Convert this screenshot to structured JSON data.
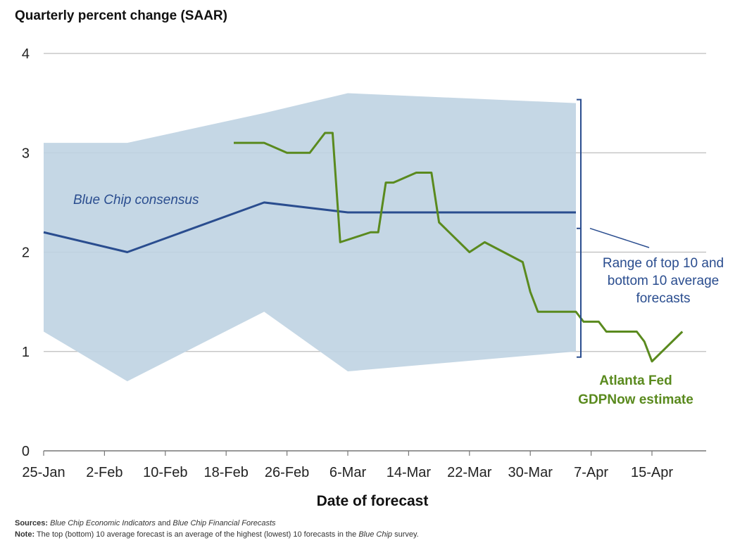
{
  "chart_data": {
    "type": "line",
    "title": "Quarterly percent change (SAAR)",
    "xlabel": "Date of forecast",
    "ylabel": "",
    "ylim": [
      0,
      4
    ],
    "yticks": [
      "0",
      "1",
      "2",
      "3",
      "4"
    ],
    "x_tick_labels": [
      "25-Jan",
      "2-Feb",
      "10-Feb",
      "18-Feb",
      "26-Feb",
      "6-Mar",
      "14-Mar",
      "22-Mar",
      "30-Mar",
      "7-Apr",
      "15-Apr"
    ],
    "grid": true,
    "series": [
      {
        "name": "Blue Chip consensus",
        "label": "Blue Chip consensus",
        "color": "#2a4d8f",
        "points": [
          [
            1,
            2.2
          ],
          [
            12,
            2.0
          ],
          [
            30,
            2.5
          ],
          [
            41,
            2.4
          ],
          [
            71,
            2.4
          ]
        ]
      },
      {
        "name": "Atlanta Fed GDPNow estimate",
        "label_lines": [
          "Atlanta Fed",
          "GDPNow estimate"
        ],
        "color": "#5a8a1e",
        "points": [
          [
            26,
            3.1
          ],
          [
            30,
            3.1
          ],
          [
            33,
            3.0
          ],
          [
            36,
            3.0
          ],
          [
            38,
            3.2
          ],
          [
            39,
            3.2
          ],
          [
            40,
            2.1
          ],
          [
            44,
            2.2
          ],
          [
            45,
            2.2
          ],
          [
            46,
            2.7
          ],
          [
            47,
            2.7
          ],
          [
            50,
            2.8
          ],
          [
            52,
            2.8
          ],
          [
            53,
            2.3
          ],
          [
            57,
            2.0
          ],
          [
            59,
            2.1
          ],
          [
            64,
            1.9
          ],
          [
            65,
            1.6
          ],
          [
            66,
            1.4
          ],
          [
            69,
            1.4
          ],
          [
            71,
            1.4
          ],
          [
            72,
            1.3
          ],
          [
            74,
            1.3
          ],
          [
            75,
            1.2
          ],
          [
            79,
            1.2
          ],
          [
            80,
            1.1
          ],
          [
            81,
            0.9
          ],
          [
            85,
            1.2
          ]
        ]
      }
    ],
    "band": {
      "name": "Range of top 10 and bottom 10 average forecasts",
      "label_lines": [
        "Range of top 10 and",
        "bottom 10 average",
        "forecasts"
      ],
      "color": "#bfd3e2",
      "upper": [
        [
          1,
          3.1
        ],
        [
          12,
          3.1
        ],
        [
          30,
          3.4
        ],
        [
          41,
          3.6
        ],
        [
          71,
          3.5
        ]
      ],
      "lower": [
        [
          1,
          1.2
        ],
        [
          12,
          0.7
        ],
        [
          30,
          1.4
        ],
        [
          41,
          0.8
        ],
        [
          71,
          1.0
        ]
      ]
    }
  },
  "footer": {
    "sources_label": "Sources:",
    "sources_i1": "Blue Chip Economic Indicators",
    "sources_and": " and ",
    "sources_i2": "Blue Chip Financial Forecasts",
    "note_label": "Note:",
    "note_text": " The top (bottom) 10 average forecast is an average of the highest (lowest) 10 forecasts in the ",
    "note_italic": "Blue Chip",
    "note_end": " survey."
  }
}
